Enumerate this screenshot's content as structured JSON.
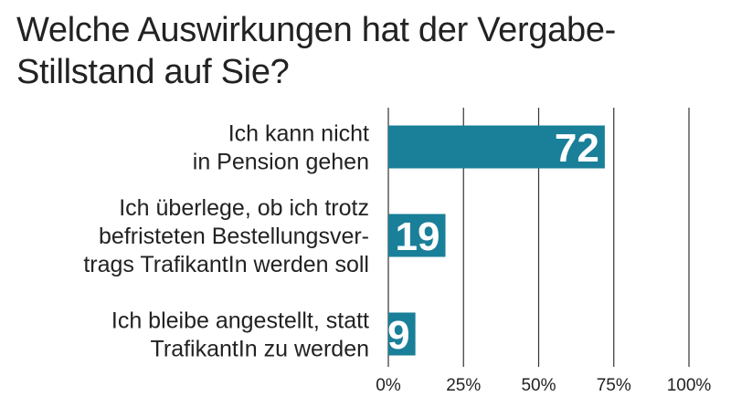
{
  "chart_data": {
    "type": "bar",
    "orientation": "horizontal",
    "title": "Welche Auswirkungen hat der Vergabe-Stillstand auf Sie?",
    "title_lines": [
      "Welche Auswirkungen hat der Vergabe-",
      "Stillstand auf Sie?"
    ],
    "categories": [
      "Ich kann nicht in Pension gehen",
      "Ich überlege, ob ich trotz befristeten Bestellungsvertrags TrafikantIn werden soll",
      "Ich bleibe angestellt, statt TrafikantIn zu werden"
    ],
    "category_lines": [
      [
        "Ich kann nicht",
        "in Pension gehen"
      ],
      [
        "Ich überlege, ob ich trotz",
        "befristeten Bestellungsver-",
        "trags TrafikantIn werden soll"
      ],
      [
        "Ich bleibe angestellt, statt",
        "TrafikantIn zu werden"
      ]
    ],
    "values": [
      72,
      19,
      9
    ],
    "value_labels": [
      "72",
      "19",
      "9"
    ],
    "xlim": [
      0,
      100
    ],
    "ticks": [
      0,
      25,
      50,
      75,
      100
    ],
    "tick_labels": [
      "0%",
      "25%",
      "50%",
      "75%",
      "100%"
    ],
    "grid": true,
    "bar_color": "#1a7f98",
    "grid_color": "#333333",
    "xlabel": "",
    "ylabel": ""
  }
}
